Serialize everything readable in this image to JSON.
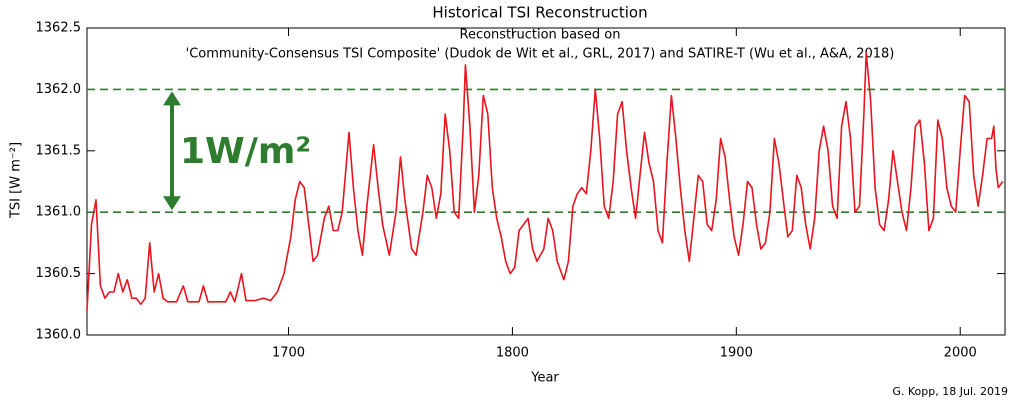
{
  "chart_data": {
    "type": "line",
    "title": "Historical TSI Reconstruction",
    "subtitle": [
      "Reconstruction based on",
      "'Community-Consensus TSI Composite' (Dudok de Wit et al., GRL, 2017) and SATIRE-T (Wu et al., A&A, 2018)"
    ],
    "xlabel": "Year",
    "ylabel": "TSI [W m⁻²]",
    "annotation": "1W/m²",
    "credit": "G. Kopp, 18 Jul. 2019",
    "xlim": [
      1610,
      2020
    ],
    "ylim": [
      1360,
      1362.5
    ],
    "xticks": [
      1700,
      1800,
      1900,
      2000
    ],
    "yticks": [
      {
        "value": 1360,
        "label": "1360.0"
      },
      1360.5,
      {
        "value": 1361,
        "label": "1361.0"
      },
      1361.5,
      {
        "value": 1362,
        "label": "1362.0"
      },
      1362.5
    ],
    "hlines": [
      1361,
      1362
    ],
    "hline_color": "#2e7d2e",
    "color": "#e8141e",
    "x": [
      1610,
      1612,
      1614,
      1616,
      1618,
      1620,
      1622,
      1624,
      1626,
      1628,
      1630,
      1632,
      1634,
      1636,
      1638,
      1640,
      1642,
      1644,
      1646,
      1650,
      1653,
      1655,
      1660,
      1662,
      1664,
      1672,
      1674,
      1676,
      1679,
      1681,
      1685,
      1689,
      1692,
      1695,
      1698,
      1701,
      1703,
      1705,
      1707,
      1709,
      1711,
      1713,
      1716,
      1718,
      1720,
      1722,
      1724,
      1727,
      1729,
      1731,
      1733,
      1735,
      1738,
      1740,
      1742,
      1745,
      1748,
      1750,
      1752,
      1755,
      1757,
      1760,
      1762,
      1764,
      1766,
      1768,
      1770,
      1772,
      1774,
      1776,
      1778,
      1779,
      1781,
      1783,
      1785,
      1787,
      1789,
      1791,
      1793,
      1795,
      1797,
      1799,
      1801,
      1803,
      1805,
      1807,
      1809,
      1811,
      1814,
      1816,
      1818,
      1820,
      1822,
      1823,
      1825,
      1827,
      1829,
      1831,
      1833,
      1835,
      1837,
      1839,
      1841,
      1843,
      1845,
      1847,
      1849,
      1851,
      1853,
      1855,
      1857,
      1859,
      1861,
      1863,
      1865,
      1867,
      1869,
      1871,
      1873,
      1875,
      1877,
      1879,
      1881,
      1883,
      1885,
      1887,
      1889,
      1891,
      1893,
      1895,
      1897,
      1899,
      1901,
      1903,
      1905,
      1907,
      1909,
      1911,
      1913,
      1915,
      1917,
      1919,
      1921,
      1923,
      1925,
      1927,
      1929,
      1931,
      1933,
      1935,
      1937,
      1939,
      1941,
      1943,
      1945,
      1947,
      1949,
      1951,
      1953,
      1955,
      1957,
      1958,
      1960,
      1962,
      1964,
      1966,
      1968,
      1970,
      1972,
      1974,
      1976,
      1978,
      1980,
      1982,
      1984,
      1986,
      1988,
      1990,
      1992,
      1994,
      1996,
      1998,
      2000,
      2002,
      2004,
      2006,
      2008,
      2010,
      2012,
      2014,
      2015,
      2016,
      2017,
      2019
    ],
    "values": [
      1360.2,
      1360.9,
      1361.1,
      1360.4,
      1360.3,
      1360.35,
      1360.35,
      1360.5,
      1360.35,
      1360.45,
      1360.3,
      1360.3,
      1360.25,
      1360.3,
      1360.75,
      1360.35,
      1360.5,
      1360.3,
      1360.27,
      1360.27,
      1360.4,
      1360.27,
      1360.27,
      1360.4,
      1360.27,
      1360.27,
      1360.35,
      1360.27,
      1360.5,
      1360.28,
      1360.28,
      1360.3,
      1360.28,
      1360.35,
      1360.5,
      1360.8,
      1361.1,
      1361.25,
      1361.2,
      1360.9,
      1360.6,
      1360.65,
      1360.95,
      1361.05,
      1360.85,
      1360.85,
      1361.0,
      1361.65,
      1361.2,
      1360.85,
      1360.65,
      1361.05,
      1361.55,
      1361.2,
      1360.9,
      1360.65,
      1361.0,
      1361.45,
      1361.1,
      1360.7,
      1360.65,
      1361.0,
      1361.3,
      1361.2,
      1360.95,
      1361.15,
      1361.8,
      1361.5,
      1361.0,
      1360.95,
      1361.7,
      1362.2,
      1361.7,
      1361.0,
      1361.3,
      1361.95,
      1361.8,
      1361.2,
      1360.95,
      1360.8,
      1360.6,
      1360.5,
      1360.55,
      1360.85,
      1360.9,
      1360.95,
      1360.7,
      1360.6,
      1360.7,
      1360.95,
      1360.85,
      1360.6,
      1360.5,
      1360.45,
      1360.6,
      1361.05,
      1361.15,
      1361.2,
      1361.15,
      1361.5,
      1362.0,
      1361.6,
      1361.05,
      1360.95,
      1361.25,
      1361.8,
      1361.9,
      1361.5,
      1361.2,
      1360.95,
      1361.3,
      1361.65,
      1361.4,
      1361.25,
      1360.85,
      1360.75,
      1361.4,
      1361.95,
      1361.6,
      1361.2,
      1360.85,
      1360.6,
      1360.95,
      1361.3,
      1361.25,
      1360.9,
      1360.85,
      1361.1,
      1361.6,
      1361.45,
      1361.1,
      1360.8,
      1360.65,
      1360.9,
      1361.25,
      1361.2,
      1360.9,
      1360.7,
      1360.75,
      1361.0,
      1361.6,
      1361.4,
      1361.1,
      1360.8,
      1360.85,
      1361.3,
      1361.2,
      1360.9,
      1360.7,
      1360.95,
      1361.5,
      1361.7,
      1361.5,
      1361.05,
      1360.95,
      1361.7,
      1361.9,
      1361.6,
      1361.0,
      1361.05,
      1361.8,
      1362.3,
      1361.9,
      1361.2,
      1360.9,
      1360.85,
      1361.1,
      1361.5,
      1361.25,
      1361.0,
      1360.85,
      1361.2,
      1361.7,
      1361.75,
      1361.4,
      1360.85,
      1360.95,
      1361.75,
      1361.6,
      1361.2,
      1361.05,
      1361.0,
      1361.5,
      1361.95,
      1361.9,
      1361.3,
      1361.05,
      1361.3,
      1361.6,
      1361.6,
      1361.7,
      1361.35,
      1361.2,
      1361.25
    ]
  }
}
